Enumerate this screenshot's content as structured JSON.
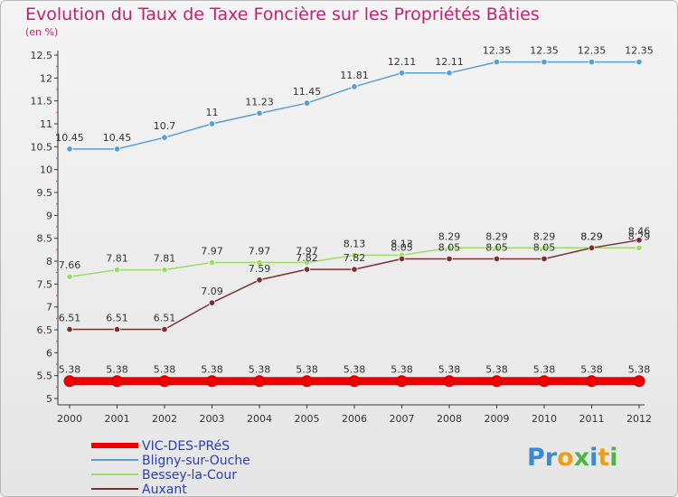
{
  "title": "Evolution du Taux de Taxe Foncière sur les Propriétés Bâties",
  "unit_label": "(en %)",
  "logo": {
    "text": "Proxiti",
    "colors": [
      "#3d88d0",
      "#3d88d0",
      "#e9a11b",
      "#4fb347",
      "#3d88d0",
      "#e9a11b",
      "#4fb347"
    ]
  },
  "chart_data": {
    "type": "line",
    "title": "Evolution du Taux de Taxe Foncière sur les Propriétés Bâties",
    "ylabel": "(en %)",
    "xlabel": "",
    "categories": [
      "2000",
      "2001",
      "2002",
      "2003",
      "2004",
      "2005",
      "2006",
      "2007",
      "2008",
      "2009",
      "2010",
      "2011",
      "2012"
    ],
    "ylim": [
      5,
      12.5
    ],
    "yticks": [
      "5",
      "5.5",
      "6",
      "6.5",
      "7",
      "7.5",
      "8",
      "8.5",
      "9",
      "9.5",
      "10",
      "10.5",
      "11",
      "11.5",
      "12",
      "12.5"
    ],
    "grid": false,
    "legend_position": "bottom-left",
    "series": [
      {
        "name": "VIC-DES-PRéS",
        "color": "#ee0000",
        "values": [
          5.38,
          5.38,
          5.38,
          5.38,
          5.38,
          5.38,
          5.38,
          5.38,
          5.38,
          5.38,
          5.38,
          5.38,
          5.38
        ],
        "labels": [
          "5.38",
          "5.38",
          "5.38",
          "5.38",
          "5.38",
          "5.38",
          "5.38",
          "5.38",
          "5.38",
          "5.38",
          "5.38",
          "5.38",
          "5.38"
        ]
      },
      {
        "name": "Bligny-sur-Ouche",
        "color": "#5a9fd4",
        "values": [
          10.45,
          10.45,
          10.7,
          11,
          11.23,
          11.45,
          11.81,
          12.11,
          12.11,
          12.35,
          12.35,
          12.35,
          12.35
        ],
        "labels": [
          "10.45",
          "10.45",
          "10.7",
          "11",
          "11.23",
          "11.45",
          "11.81",
          "12.11",
          "12.11",
          "12.35",
          "12.35",
          "12.35",
          "12.35"
        ]
      },
      {
        "name": "Bessey-la-Cour",
        "color": "#99dd66",
        "values": [
          7.66,
          7.81,
          7.81,
          7.97,
          7.97,
          7.97,
          8.13,
          8.13,
          8.29,
          8.29,
          8.29,
          8.29,
          8.29
        ],
        "labels": [
          "7.66",
          "7.81",
          "7.81",
          "7.97",
          "7.97",
          "7.97",
          "8.13",
          "8.13",
          "8.29",
          "8.29",
          "8.29",
          "8.29",
          "8.29"
        ]
      },
      {
        "name": "Auxant",
        "color": "#7a3030",
        "values": [
          6.51,
          6.51,
          6.51,
          7.09,
          7.59,
          7.82,
          7.82,
          8.05,
          8.05,
          8.05,
          8.05,
          8.29,
          8.46
        ],
        "labels": [
          "6.51",
          "6.51",
          "6.51",
          "7.09",
          "7.59",
          "7.82",
          "7.82",
          "8.05",
          "8.05",
          "8.05",
          "8.05",
          "8.29",
          "8.46"
        ]
      }
    ]
  }
}
